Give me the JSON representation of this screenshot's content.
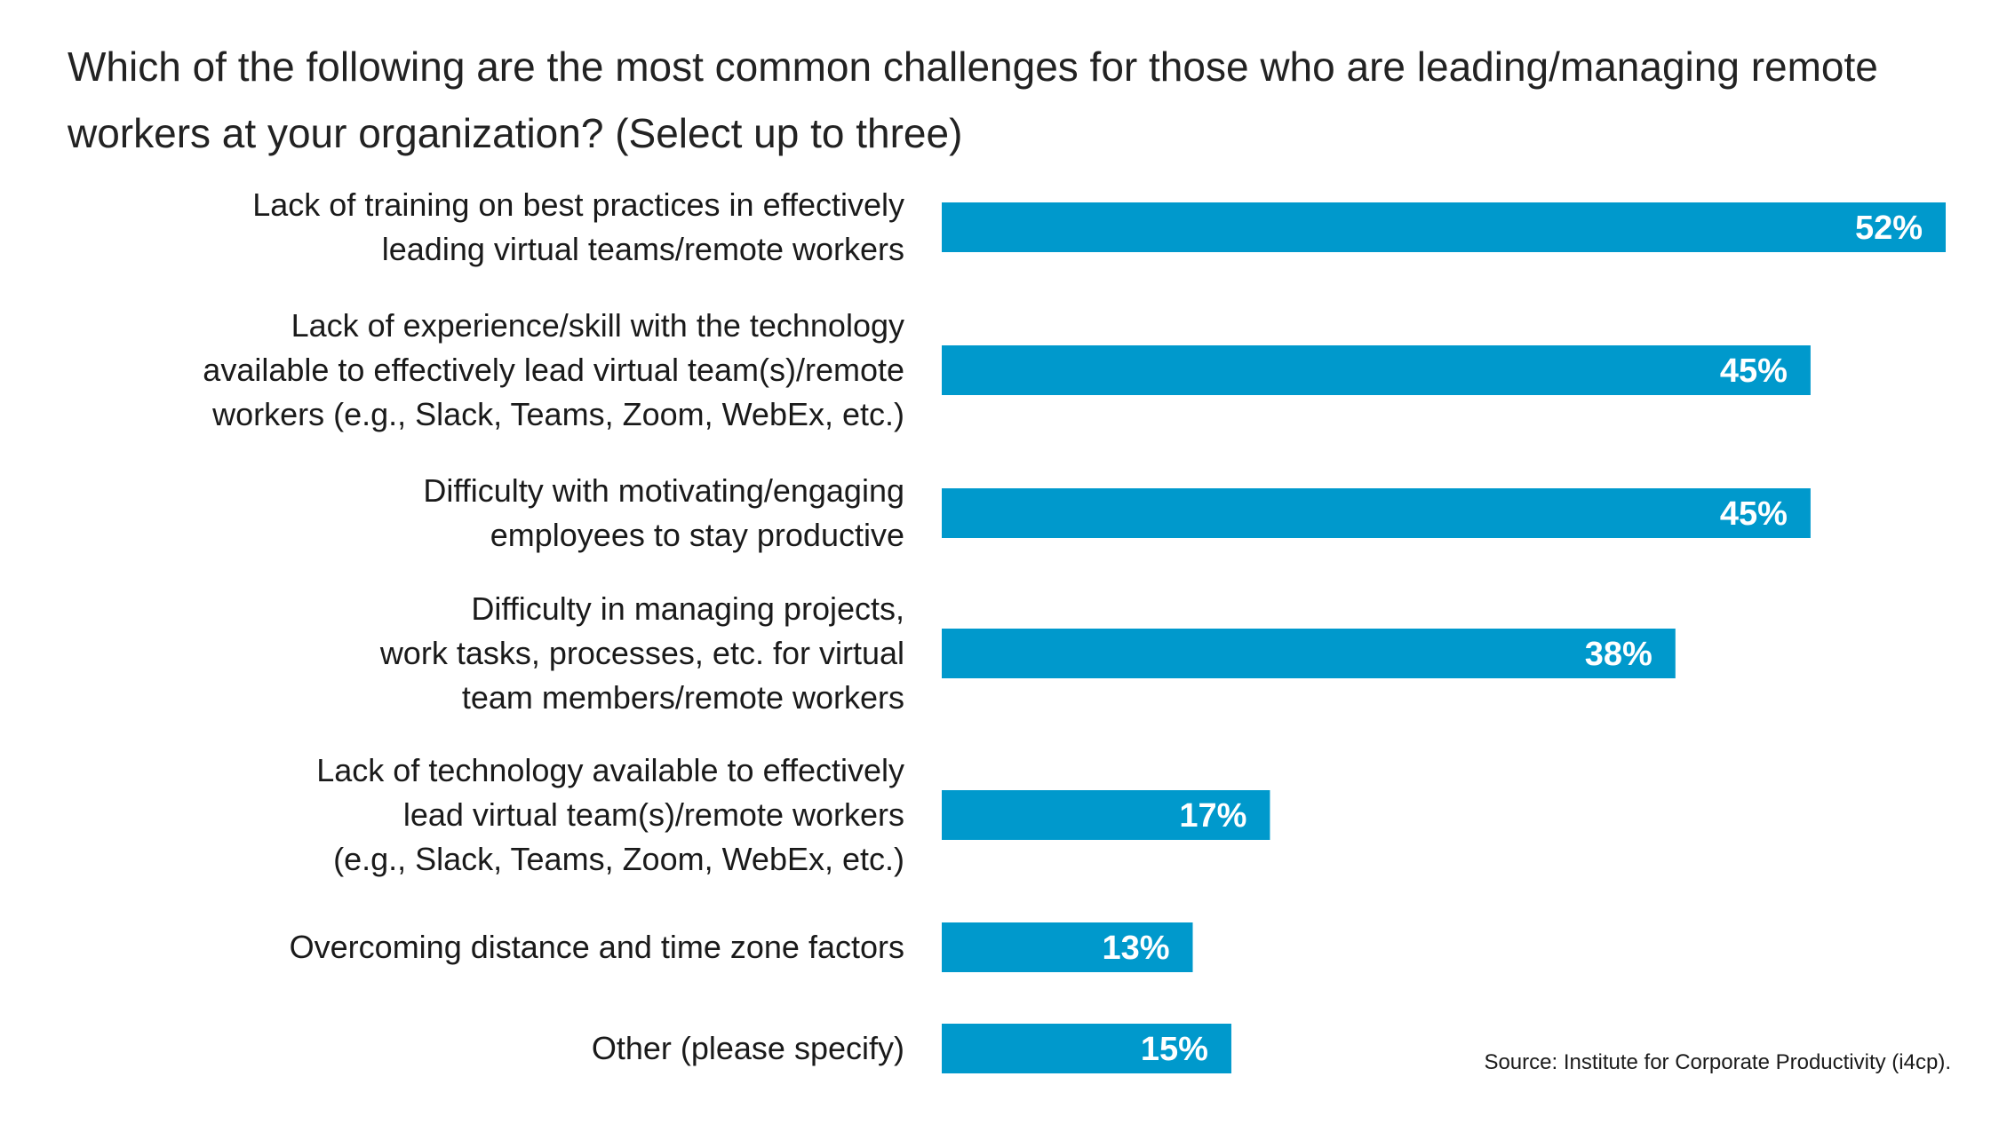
{
  "title": "Which of the following are the most common challenges for those who are leading/managing remote workers at your organization? (Select up to three)",
  "source": "Source: Institute for Corporate Productivity (i4cp).",
  "colors": {
    "bar": "#0099cc",
    "value_label": "#ffffff",
    "text": "#1a1a1a"
  },
  "chart_data": {
    "type": "bar",
    "orientation": "horizontal",
    "title": "Which of the following are the most common challenges for those who are leading/managing remote workers at your organization? (Select up to three)",
    "categories": [
      [
        "Lack of training on best practices in effectively",
        "leading virtual teams/remote workers"
      ],
      [
        "Lack of experience/skill with the technology",
        "available to effectively lead virtual team(s)/remote",
        "workers (e.g., Slack, Teams, Zoom, WebEx, etc.)"
      ],
      [
        "Difficulty with motivating/engaging",
        "employees to stay productive"
      ],
      [
        "Difficulty in managing projects,",
        "work tasks, processes, etc. for virtual",
        "team members/remote workers"
      ],
      [
        "Lack of technology available to effectively",
        "lead virtual team(s)/remote workers",
        "(e.g., Slack, Teams, Zoom, WebEx, etc.)"
      ],
      [
        "Overcoming distance and time zone factors"
      ],
      [
        "Other (please specify)"
      ]
    ],
    "values": [
      52,
      45,
      45,
      38,
      17,
      13,
      15
    ],
    "value_labels": [
      "52%",
      "45%",
      "45%",
      "38%",
      "17%",
      "13%",
      "15%"
    ],
    "unit": "%",
    "xlim": [
      0,
      52
    ],
    "grid": false,
    "legend": "none"
  }
}
